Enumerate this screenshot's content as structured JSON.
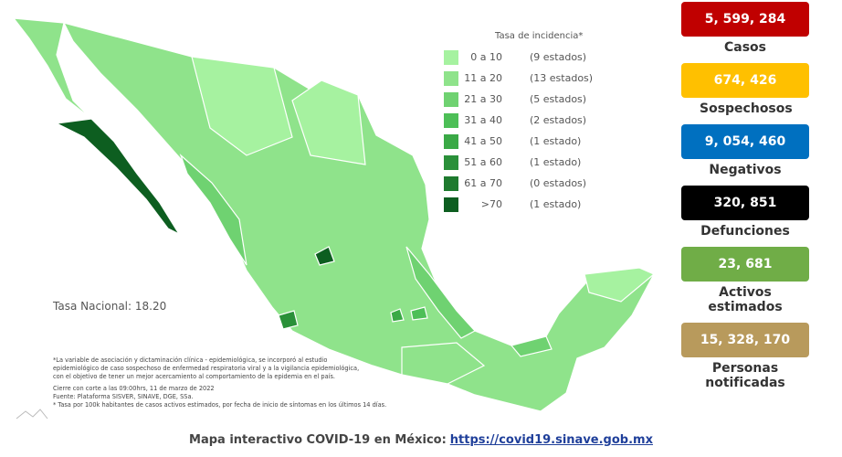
{
  "legend": {
    "title": "Tasa de incidencia*",
    "rows": [
      {
        "range": "0 a 10",
        "count": "(9 estados)",
        "color": "#a6f2a0"
      },
      {
        "range": "11 a 20",
        "count": "(13 estados)",
        "color": "#8fe38b"
      },
      {
        "range": "21 a 30",
        "count": "(5 estados)",
        "color": "#6fd271"
      },
      {
        "range": "31 a 40",
        "count": "(2 estados)",
        "color": "#4dbf57"
      },
      {
        "range": "41 a 50",
        "count": "(1 estado)",
        "color": "#3aa946"
      },
      {
        "range": "51 a 60",
        "count": "(1 estado)",
        "color": "#2a9039"
      },
      {
        "range": "61 a 70",
        "count": "(0 estados)",
        "color": "#1e7a2e"
      },
      {
        "range": ">70",
        "count": "(1 estado)",
        "color": "#0d5e20"
      }
    ]
  },
  "national_rate": "Tasa Nacional: 18.20",
  "footnotes": [
    "*La variable de asociación y dictaminación clínica - epidemiológica, se incorporó al estudio",
    "epidemiológico de caso sospechoso de enfermedad respiratoria viral y a la vigilancia epidemiológica,",
    "con el objetivo de tener un mejor acercamiento al comportamiento de la epidemia en el país.",
    "Cierre con corte a las 09:00hrs, 11 de marzo de 2022",
    "Fuente: Plataforma SISVER, SINAVE, DGE, SSa.",
    "* Tasa por 100k habitantes de casos activos estimados, por fecha de inicio de síntomas en los últimos 14 días."
  ],
  "stats": [
    {
      "value": "5, 599, 284",
      "label": "Casos",
      "color": "#c00000",
      "text_color": "#ffffff"
    },
    {
      "value": "674, 426",
      "label": "Sospechosos",
      "color": "#ffc000",
      "text_color": "#ffffff"
    },
    {
      "value": "9, 054, 460",
      "label": "Negativos",
      "color": "#0070c0",
      "text_color": "#ffffff"
    },
    {
      "value": "320, 851",
      "label": "Defunciones",
      "color": "#000000",
      "text_color": "#ffffff"
    },
    {
      "value": "23, 681",
      "label": "Activos estimados",
      "color": "#70ad47",
      "text_color": "#ffffff"
    },
    {
      "value": "15, 328, 170",
      "label": "Personas notificadas",
      "color": "#b89a5c",
      "text_color": "#ffffff"
    }
  ],
  "footer": {
    "text": "Mapa interactivo COVID-19 en México:",
    "link": "https://covid19.sinave.gob.mx"
  }
}
